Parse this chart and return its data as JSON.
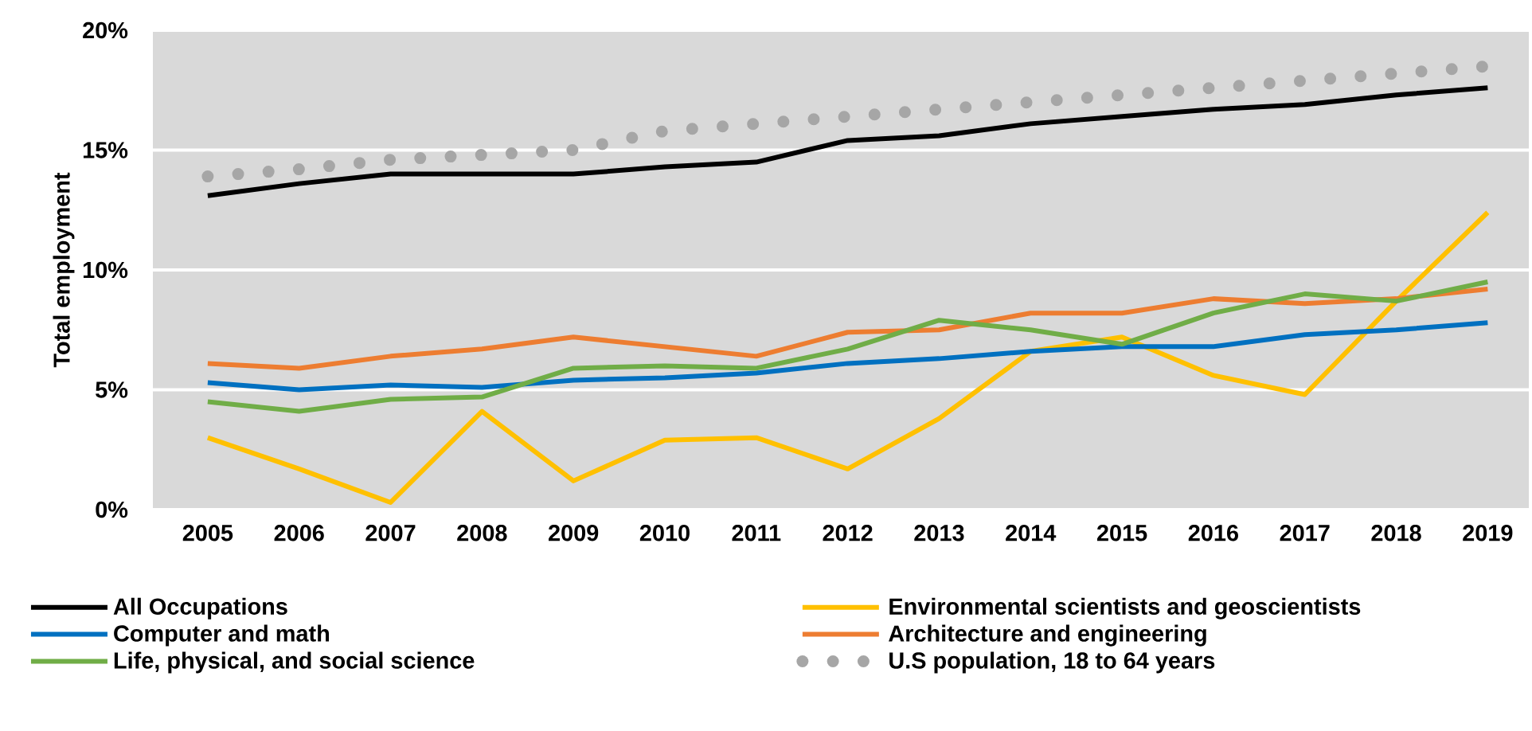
{
  "chart_data": {
    "type": "line",
    "ylabel": "Total employment",
    "categories": [
      "2005",
      "2006",
      "2007",
      "2008",
      "2009",
      "2010",
      "2011",
      "2012",
      "2013",
      "2014",
      "2015",
      "2016",
      "2017",
      "2018",
      "2019"
    ],
    "ylim": [
      0,
      20
    ],
    "yticks": [
      {
        "value": 0,
        "label": "0%"
      },
      {
        "value": 5,
        "label": "5%"
      },
      {
        "value": 10,
        "label": "10%"
      },
      {
        "value": 15,
        "label": "15%"
      },
      {
        "value": 20,
        "label": "20%"
      }
    ],
    "grid": "y",
    "legend": "bottom",
    "series": [
      {
        "name": "All Occupations",
        "color": "#000000",
        "values": [
          13.1,
          13.6,
          14.0,
          14.0,
          14.0,
          14.3,
          14.5,
          15.4,
          15.6,
          16.1,
          16.4,
          16.7,
          16.9,
          17.3,
          17.6
        ]
      },
      {
        "name": "Environmental scientists and geoscientists",
        "color": "#ffc000",
        "values": [
          3.0,
          1.7,
          0.3,
          4.1,
          1.2,
          2.9,
          3.0,
          1.7,
          3.8,
          6.6,
          7.2,
          5.6,
          4.8,
          8.7,
          12.4
        ]
      },
      {
        "name": "Computer and math",
        "color": "#0070c0",
        "values": [
          5.3,
          5.0,
          5.2,
          5.1,
          5.4,
          5.5,
          5.7,
          6.1,
          6.3,
          6.6,
          6.8,
          6.8,
          7.3,
          7.5,
          7.8
        ]
      },
      {
        "name": "Architecture and engineering",
        "color": "#ed7d31",
        "values": [
          6.1,
          5.9,
          6.4,
          6.7,
          7.2,
          6.8,
          6.4,
          7.4,
          7.5,
          8.2,
          8.2,
          8.8,
          8.6,
          8.8,
          9.2
        ]
      },
      {
        "name": "Life, physical, and social science",
        "color": "#70ad47",
        "values": [
          4.5,
          4.1,
          4.6,
          4.7,
          5.9,
          6.0,
          5.9,
          6.7,
          7.9,
          7.5,
          6.9,
          8.2,
          9.0,
          8.7,
          9.5
        ]
      },
      {
        "name": "U.S population, 18 to 64 years",
        "color": "#a6a6a6",
        "line_style": "dotted",
        "values": [
          13.9,
          14.2,
          14.6,
          14.8,
          15.0,
          15.8,
          16.1,
          16.4,
          16.7,
          17.0,
          17.3,
          17.6,
          17.9,
          18.2,
          18.5
        ]
      }
    ]
  }
}
